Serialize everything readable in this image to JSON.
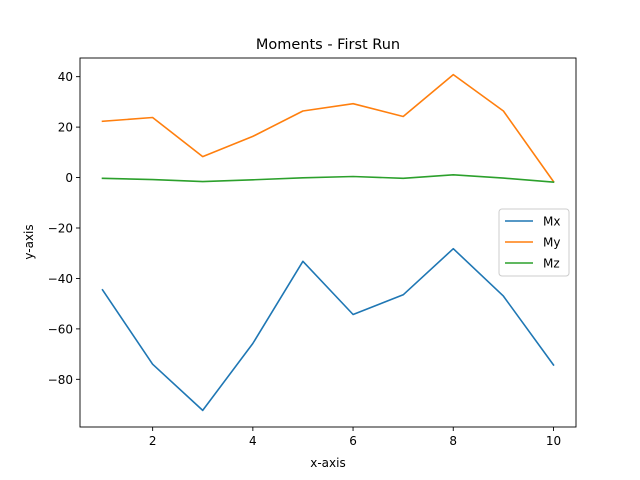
{
  "chart_data": {
    "type": "line",
    "title": "Moments - First Run",
    "xlabel": "x-axis",
    "ylabel": "y-axis",
    "x": [
      1,
      2,
      3,
      4,
      5,
      6,
      7,
      8,
      9,
      10
    ],
    "series": [
      {
        "name": "Mx",
        "color": "#1f77b4",
        "values": [
          -44.5,
          -74.0,
          -92.3,
          -65.8,
          -33.2,
          -54.3,
          -46.5,
          -28.2,
          -47.0,
          -74.3
        ]
      },
      {
        "name": "My",
        "color": "#ff7f0e",
        "values": [
          22.3,
          23.8,
          8.3,
          16.3,
          26.4,
          29.3,
          24.2,
          40.8,
          26.4,
          -1.6
        ]
      },
      {
        "name": "Mz",
        "color": "#2ca02c",
        "values": [
          -0.3,
          -0.8,
          -1.6,
          -0.9,
          -0.1,
          0.4,
          -0.3,
          1.1,
          -0.2,
          -1.8
        ]
      }
    ],
    "xlim": [
      0.55,
      10.45
    ],
    "ylim": [
      -98.9,
      47.4
    ],
    "xticks": [
      2,
      4,
      6,
      8,
      10
    ],
    "yticks": [
      -80,
      -60,
      -40,
      -20,
      0,
      20,
      40
    ],
    "ytick_labels": [
      "−80",
      "−60",
      "−40",
      "−20",
      "0",
      "20",
      "40"
    ],
    "grid": false,
    "legend_position": "center-right"
  }
}
